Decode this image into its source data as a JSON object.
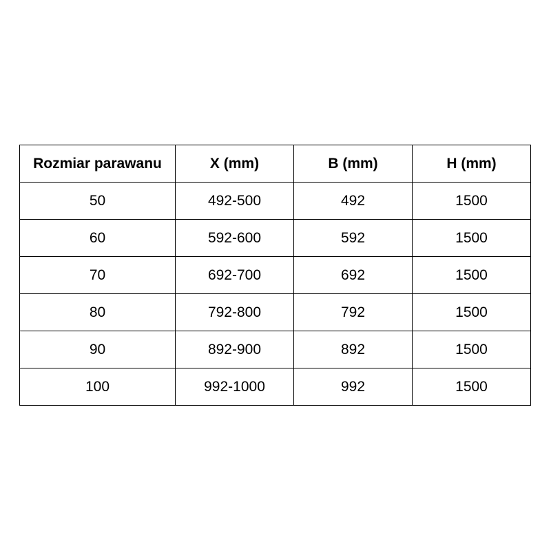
{
  "table": {
    "headers": [
      "Rozmiar parawanu",
      "X (mm)",
      "B (mm)",
      "H (mm)"
    ],
    "rows": [
      [
        "50",
        "492-500",
        "492",
        "1500"
      ],
      [
        "60",
        "592-600",
        "592",
        "1500"
      ],
      [
        "70",
        "692-700",
        "692",
        "1500"
      ],
      [
        "80",
        "792-800",
        "792",
        "1500"
      ],
      [
        "90",
        "892-900",
        "892",
        "1500"
      ],
      [
        "100",
        "992-1000",
        "992",
        "1500"
      ]
    ]
  }
}
